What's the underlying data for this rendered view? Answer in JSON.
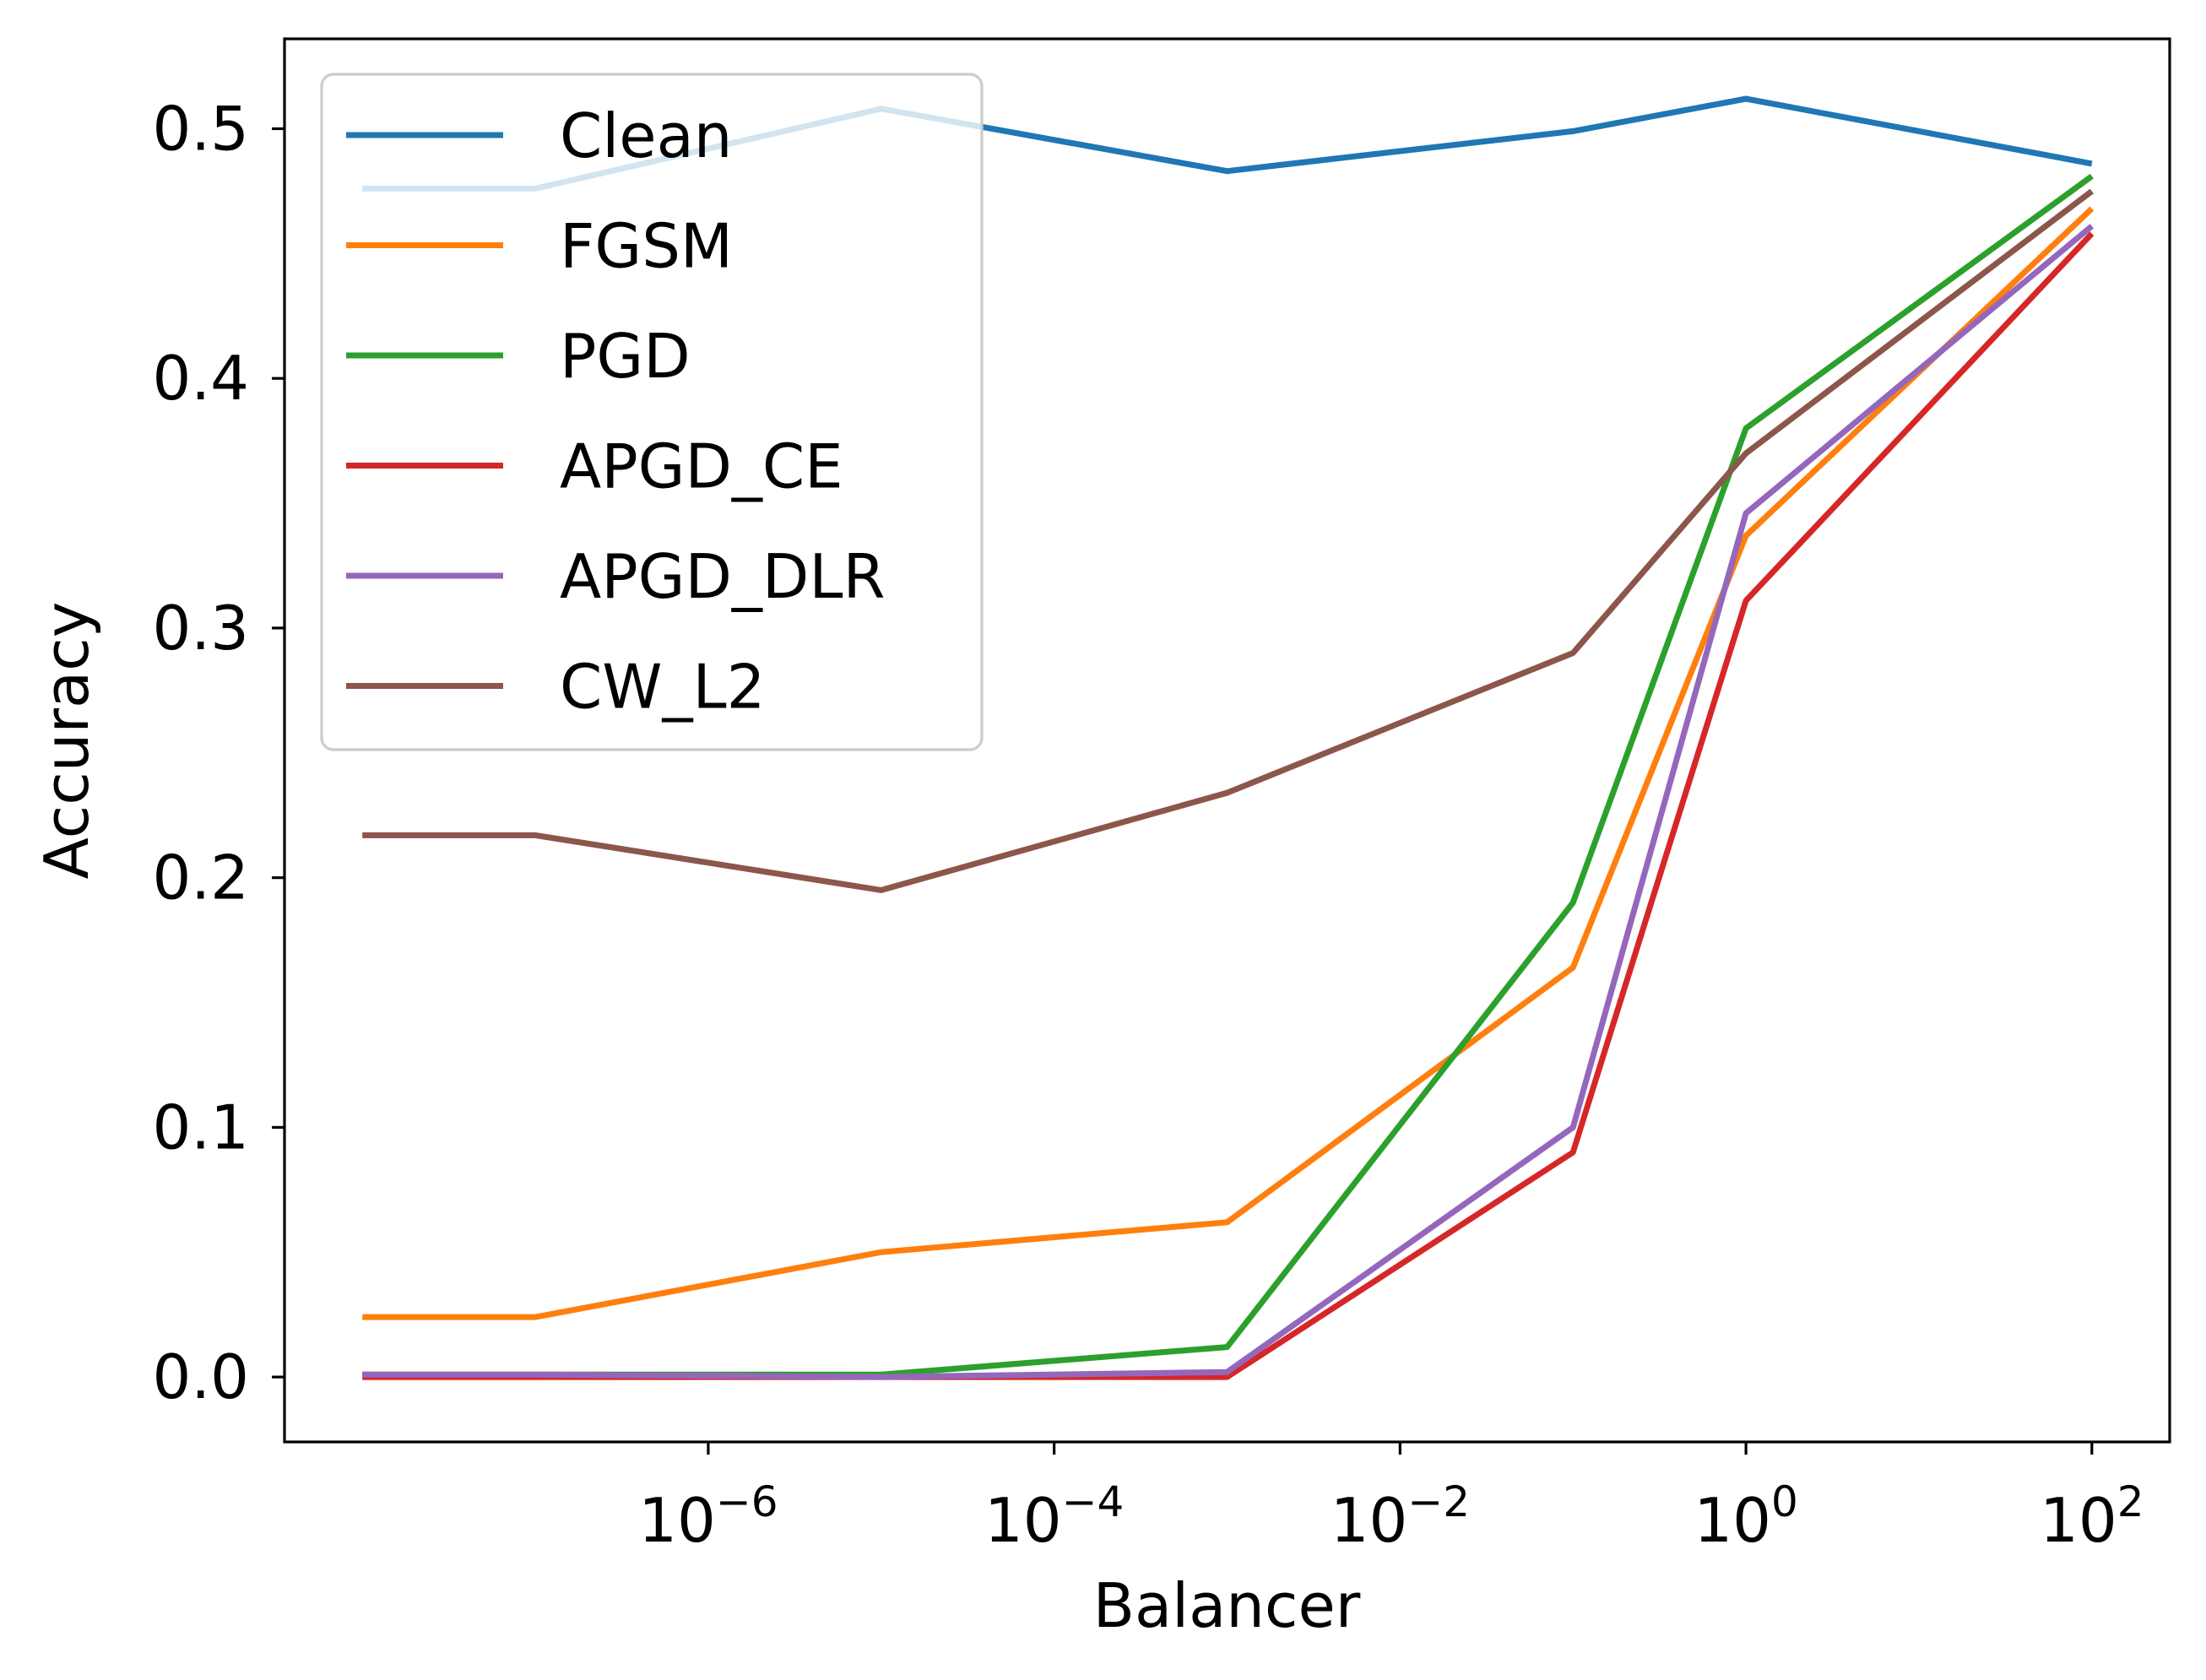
{
  "chart_data": {
    "type": "line",
    "xlabel": "Balancer",
    "ylabel": "Accuracy",
    "x_scale": "log",
    "x": [
      1e-08,
      1e-07,
      1e-05,
      0.001,
      0.1,
      1,
      100
    ],
    "xlim_exponents": [
      -8.45,
      2.45
    ],
    "ylim": [
      -0.026,
      0.536
    ],
    "x_ticks": [
      {
        "base": "10",
        "exp": "−6",
        "value": 1e-06
      },
      {
        "base": "10",
        "exp": "−4",
        "value": 0.0001
      },
      {
        "base": "10",
        "exp": "−2",
        "value": 0.01
      },
      {
        "base": "10",
        "exp": "0",
        "value": 1
      },
      {
        "base": "10",
        "exp": "2",
        "value": 100
      }
    ],
    "y_ticks": [
      {
        "label": "0.0",
        "value": 0.0
      },
      {
        "label": "0.1",
        "value": 0.1
      },
      {
        "label": "0.2",
        "value": 0.2
      },
      {
        "label": "0.3",
        "value": 0.3
      },
      {
        "label": "0.4",
        "value": 0.4
      },
      {
        "label": "0.5",
        "value": 0.5
      }
    ],
    "grid": false,
    "legend_position": "top-left",
    "series": [
      {
        "name": "Clean",
        "color": "#1f77b4",
        "values": [
          0.476,
          0.476,
          0.508,
          0.483,
          0.499,
          0.512,
          0.486
        ]
      },
      {
        "name": "FGSM",
        "color": "#ff7f0e",
        "values": [
          0.024,
          0.024,
          0.05,
          0.062,
          0.164,
          0.337,
          0.468
        ]
      },
      {
        "name": "PGD",
        "color": "#2ca02c",
        "values": [
          0.001,
          0.001,
          0.001,
          0.012,
          0.19,
          0.38,
          0.481
        ]
      },
      {
        "name": "APGD_CE",
        "color": "#d62728",
        "values": [
          0.0,
          0.0,
          0.0,
          0.0,
          0.09,
          0.311,
          0.458
        ]
      },
      {
        "name": "APGD_DLR",
        "color": "#9467bd",
        "values": [
          0.001,
          0.001,
          0.0,
          0.002,
          0.1,
          0.346,
          0.461
        ]
      },
      {
        "name": "CW_L2",
        "color": "#8c564b",
        "values": [
          0.217,
          0.217,
          0.195,
          0.234,
          0.29,
          0.37,
          0.475
        ]
      }
    ]
  }
}
